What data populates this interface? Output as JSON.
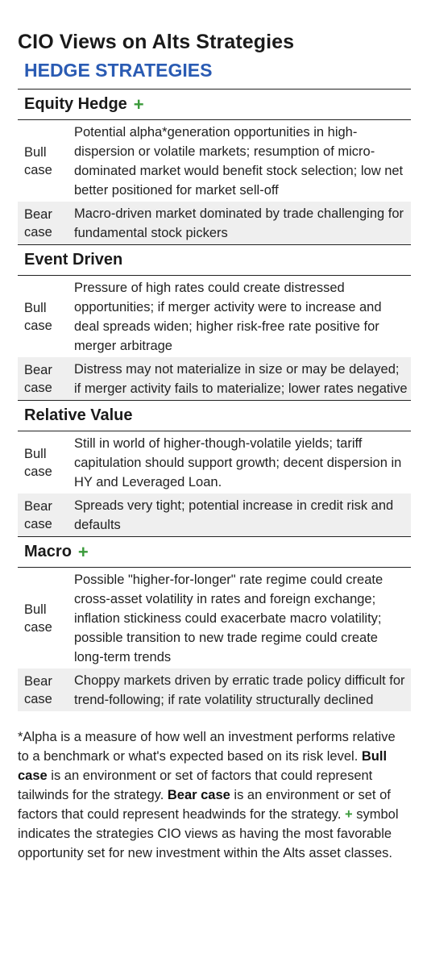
{
  "header": {
    "title": "CIO Views on Alts Strategies",
    "subtitle": "HEDGE STRATEGIES"
  },
  "colors": {
    "accent_blue": "#2a5bb3",
    "plus_green": "#3a9a3a",
    "bear_row_bg": "#efefef"
  },
  "sections": [
    {
      "name": "Equity Hedge",
      "favorable": true,
      "plus_symbol": "+",
      "bull_label": "Bull case",
      "bull_text": "Potential alpha*generation opportunities in high-dispersion or volatile markets; resumption of micro-dominated market would benefit stock selection; low net better positioned for market sell-off",
      "bear_label": "Bear case",
      "bear_text": "Macro-driven market dominated by trade challenging for fundamental stock pickers"
    },
    {
      "name": "Event Driven",
      "favorable": false,
      "bull_label": "Bull case",
      "bull_text": "Pressure of high rates could create distressed opportunities; if merger activity were to increase and deal spreads widen; higher risk-free rate positive for merger arbitrage",
      "bear_label": "Bear case",
      "bear_text": "Distress may not materialize in size or may be delayed; if merger activity fails to materialize; lower rates negative"
    },
    {
      "name": "Relative Value",
      "favorable": false,
      "bull_label": "Bull case",
      "bull_text": "Still in world of higher-though-volatile yields; tariff capitulation should support growth; decent dispersion in HY and Leveraged Loan.",
      "bear_label": "Bear case",
      "bear_text": "Spreads very tight; potential increase in credit risk and defaults"
    },
    {
      "name": "Macro",
      "favorable": true,
      "plus_symbol": "+",
      "bull_label": "Bull case",
      "bull_text": "Possible \"higher-for-longer\" rate regime could create cross-asset volatility in rates and foreign exchange; inflation stickiness could exacerbate macro volatility; possible transition to new trade regime could create long-term trends",
      "bear_label": "Bear case",
      "bear_text": "Choppy markets driven by erratic trade policy difficult for trend-following; if rate volatility structurally declined"
    }
  ],
  "footnote": {
    "part1": "*Alpha is a measure of how well an investment performs relative to a benchmark or what's expected based on its risk level. ",
    "bull_term": "Bull case",
    "part2": " is an environment or set of factors that could represent tailwinds for the strategy. ",
    "bear_term": "Bear case",
    "part3": " is an environment or set of factors that could represent headwinds for the strategy. ",
    "plus_symbol": "+",
    "part4": " symbol indicates the strategies CIO views as having the most favorable opportunity set for new investment within the Alts asset classes."
  }
}
